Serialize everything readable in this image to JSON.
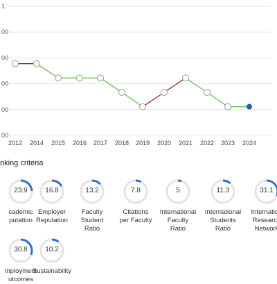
{
  "chart_data": {
    "type": "line",
    "x": [
      "2012",
      "2014",
      "2015",
      "2016",
      "2017",
      "2018",
      "2019",
      "2020",
      "2021",
      "2022",
      "2023",
      "2024"
    ],
    "y_tick_labels": [
      "1",
      "00",
      "00",
      "00",
      "00",
      "00"
    ],
    "values": [
      5,
      5,
      4,
      4,
      4,
      3,
      2,
      3,
      4,
      3,
      2,
      2
    ],
    "ylim": [
      0,
      9
    ],
    "grid": "horizontal",
    "colors": {
      "up": "#8b2a2a",
      "down": "#6bbf59",
      "last_point": "#1f5fbf",
      "point_face": "#ffffff",
      "point_edge": "#999999"
    }
  },
  "criteria_title": "nking criteria",
  "criteria": [
    {
      "value": "23.9",
      "label": "cademic\nputation",
      "fraction": 0.239
    },
    {
      "value": "16.8",
      "label": "Employer\nReputation",
      "fraction": 0.168
    },
    {
      "value": "13.2",
      "label": "Faculty\nStudent\nRatio",
      "fraction": 0.132
    },
    {
      "value": "7.8",
      "label": "Citations\nper Faculty",
      "fraction": 0.078
    },
    {
      "value": "5",
      "label": "International\nFaculty\nRatio",
      "fraction": 0.05
    },
    {
      "value": "11.3",
      "label": "International\nStudents\nRatio",
      "fraction": 0.113
    },
    {
      "value": "31.1",
      "label": "Internation\nResearch\nNetwork",
      "fraction": 0.311
    },
    {
      "value": "30.8",
      "label": "mployment\nutcomes",
      "fraction": 0.308
    },
    {
      "value": "10.2",
      "label": "Sustainability",
      "fraction": 0.102
    }
  ],
  "colors": {
    "ring_track": "#e3e3e3",
    "ring_fill": "#2f6fd0"
  }
}
